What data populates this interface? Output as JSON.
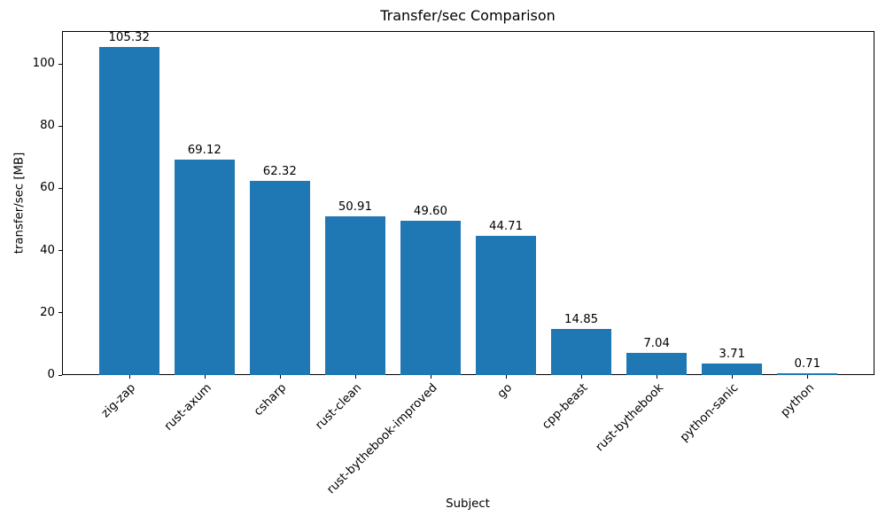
{
  "chart_data": {
    "type": "bar",
    "title": "Transfer/sec Comparison",
    "xlabel": "Subject",
    "ylabel": "transfer/sec [MB]",
    "categories": [
      "zig-zap",
      "rust-axum",
      "csharp",
      "rust-clean",
      "rust-bythebook-improved",
      "go",
      "cpp-beast",
      "rust-bythebook",
      "python-sanic",
      "python"
    ],
    "values": [
      105.32,
      69.12,
      62.32,
      50.91,
      49.6,
      44.71,
      14.85,
      7.04,
      3.71,
      0.71
    ],
    "value_labels": [
      "105.32",
      "69.12",
      "62.32",
      "50.91",
      "49.60",
      "44.71",
      "14.85",
      "7.04",
      "3.71",
      "0.71"
    ],
    "yticks": [
      0,
      20,
      40,
      60,
      80,
      100
    ],
    "ylim": [
      0,
      110.59
    ],
    "bar_color": "#1f77b4",
    "axis_color": "#000000",
    "grid": false,
    "legend": null,
    "x_tick_rotation_deg": 45
  }
}
